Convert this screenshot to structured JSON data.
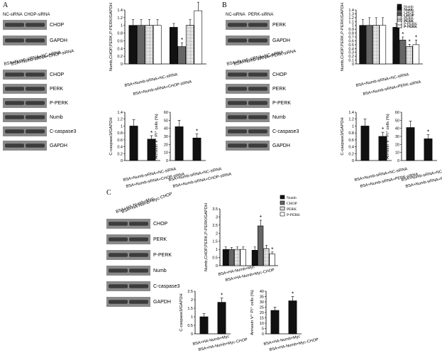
{
  "panels": {
    "A": {
      "letter": "A",
      "top_blot": {
        "lane_labels": [
          "NC-siRNA",
          "CHOP-siRNA"
        ],
        "bands": [
          "CHOP",
          "GAPDH"
        ]
      },
      "lower_blot": {
        "lane_labels": [
          "BSA+Numb-siRNA+NC-siRNA",
          "BSA+Numb-siRNA+CHOP-siRNA"
        ],
        "bands": [
          "CHOP",
          "PERK",
          "P-PERK",
          "Numb",
          "C-caspase3",
          "GAPDH"
        ]
      }
    },
    "B": {
      "letter": "B",
      "top_blot": {
        "lane_labels": [
          "NC-siRNA",
          "PERK-siRNA"
        ],
        "bands": [
          "PERK",
          "GAPDH"
        ]
      },
      "lower_blot": {
        "lane_labels": [
          "BSA+Numb-siRNA+NC-siRNA",
          "BSA+Numb-siRNA+PERK-siRNA"
        ],
        "bands": [
          "CHOP",
          "PERK",
          "P-PERK",
          "Numb",
          "C-caspase3",
          "GAPDH"
        ]
      }
    },
    "C": {
      "letter": "C",
      "blot": {
        "lane_labels": [
          "BSA+HA-Numb+Myc",
          "BSA+HA-Numb+Myc-CHOP"
        ],
        "bands": [
          "CHOP",
          "PERK",
          "P-PERK",
          "Numb",
          "C-caspase3",
          "GAPDH"
        ]
      }
    }
  },
  "legend_items": [
    "Numb",
    "CHOP",
    "PERK",
    "P-PERK"
  ],
  "chart_data": [
    {
      "id": "A-grouped",
      "type": "bar",
      "ylabel": "Numb,CHOP,PERK,P-PERK/GAPDH",
      "ylim": [
        0,
        1.4
      ],
      "yticks": [
        "0",
        "0.2",
        "0.4",
        "0.6",
        "0.8",
        "1",
        "1.2",
        "1.4"
      ],
      "categories": [
        "BSA+Numb-siRNA+NC-siRNA",
        "BSA+Numb-siRNA+CHOP-siRNA"
      ],
      "series": [
        {
          "name": "Numb",
          "values": [
            1.0,
            0.95
          ],
          "errors": [
            0.15,
            0.1
          ]
        },
        {
          "name": "CHOP",
          "values": [
            1.0,
            0.45
          ],
          "errors": [
            0.15,
            0.1
          ]
        },
        {
          "name": "PERK",
          "values": [
            1.0,
            1.0
          ],
          "errors": [
            0.15,
            0.15
          ]
        },
        {
          "name": "P-PERK",
          "values": [
            1.0,
            1.38
          ],
          "errors": [
            0.15,
            0.22
          ]
        }
      ],
      "significance": [
        "",
        "",
        "",
        "",
        "",
        "*",
        "",
        "*"
      ]
    },
    {
      "id": "A-caspase",
      "type": "bar",
      "ylabel": "C-caspase3/GAPDH",
      "ylim": [
        0,
        1.4
      ],
      "yticks": [
        "0",
        "0.2",
        "0.4",
        "0.6",
        "0.8",
        "1",
        "1.2",
        "1.4"
      ],
      "categories": [
        "BSA+Numb-siRNA+NC-siRNA",
        "BSA+Numb-siRNA+CHOP-siRNA"
      ],
      "values": [
        1.0,
        0.62
      ],
      "errors": [
        0.18,
        0.1
      ],
      "significance": [
        "",
        "*"
      ]
    },
    {
      "id": "A-annexin",
      "type": "bar",
      "ylabel": "Annexin V⁺ PI⁺ cells (%)",
      "ylim": [
        0,
        60
      ],
      "yticks": [
        "0",
        "10",
        "20",
        "30",
        "40",
        "50",
        "60"
      ],
      "categories": [
        "BSA+Numb-siRNA+NC-siRNA",
        "BSA+Numb-siRNA+CHOP-siRNA"
      ],
      "values": [
        42,
        28
      ],
      "errors": [
        8,
        5
      ],
      "significance": [
        "",
        "*"
      ]
    },
    {
      "id": "B-grouped",
      "type": "bar",
      "ylabel": "Numb,CHOP,PERK,P-PERK/GAPDH",
      "ylim": [
        0,
        1.4
      ],
      "yticks": [
        "0",
        "0.1",
        "0.2",
        "0.3",
        "0.4",
        "0.5",
        "0.6",
        "0.7",
        "0.8",
        "0.9",
        "1",
        "1.1",
        "1.2",
        "1.3",
        "1.4"
      ],
      "categories": [
        "BSA+Numb-siRNA+NC-siRNA",
        "BSA+Numb-siRNA+PERK-siRNA"
      ],
      "series": [
        {
          "name": "Numb",
          "values": [
            1.0,
            0.95
          ],
          "errors": [
            0.15,
            0.1
          ]
        },
        {
          "name": "CHOP",
          "values": [
            1.0,
            0.62
          ],
          "errors": [
            0.2,
            0.08
          ]
        },
        {
          "name": "PERK",
          "values": [
            1.0,
            0.45
          ],
          "errors": [
            0.2,
            0.06
          ]
        },
        {
          "name": "P-PERK",
          "values": [
            1.0,
            0.5
          ],
          "errors": [
            0.2,
            0.12
          ]
        }
      ],
      "significance": [
        "",
        "",
        "",
        "",
        "",
        "*",
        "*",
        "*"
      ]
    },
    {
      "id": "B-caspase",
      "type": "bar",
      "ylabel": "C-caspase3/GAPDH",
      "ylim": [
        0,
        1.4
      ],
      "yticks": [
        "0",
        "0.2",
        "0.4",
        "0.6",
        "0.8",
        "1",
        "1.2",
        "1.4"
      ],
      "categories": [
        "BSA+Numb-siRNA+NC-siRNA",
        "BSA+Numb-siRNA+PERK-siRNA"
      ],
      "values": [
        1.0,
        0.7
      ],
      "errors": [
        0.2,
        0.12
      ],
      "significance": [
        "",
        "*"
      ]
    },
    {
      "id": "B-annexin",
      "type": "bar",
      "ylabel": "Annexin V⁺ PI⁺ cells (%)",
      "ylim": [
        0,
        60
      ],
      "yticks": [
        "0",
        "10",
        "20",
        "30",
        "40",
        "50",
        "60"
      ],
      "categories": [
        "BSA+Numb-siRNA+NC-siRNA",
        "BSA+Numb-siRNA+PERK-siRNA"
      ],
      "values": [
        41,
        27
      ],
      "errors": [
        8,
        5
      ],
      "significance": [
        "",
        "*"
      ]
    },
    {
      "id": "C-grouped",
      "type": "bar",
      "ylabel": "Numb,CHOP,PERK,P-PERK/GAPDH",
      "ylim": [
        0,
        3.5
      ],
      "yticks": [
        "0",
        "0.5",
        "1",
        "1.5",
        "2",
        "2.5",
        "3",
        "3.5"
      ],
      "categories": [
        "BSA+HA-Numb+Myc",
        "BSA+HA-Numb+Myc-CHOP"
      ],
      "series": [
        {
          "name": "Numb",
          "values": [
            1.0,
            0.95
          ],
          "errors": [
            0.15,
            0.2
          ]
        },
        {
          "name": "CHOP",
          "values": [
            1.0,
            2.45
          ],
          "errors": [
            0.12,
            0.35
          ]
        },
        {
          "name": "PERK",
          "values": [
            1.0,
            1.05
          ],
          "errors": [
            0.15,
            0.2
          ]
        },
        {
          "name": "P-PERK",
          "values": [
            1.0,
            0.72
          ],
          "errors": [
            0.15,
            0.12
          ]
        }
      ],
      "significance": [
        "",
        "",
        "",
        "",
        "",
        "*",
        "",
        "*"
      ]
    },
    {
      "id": "C-caspase",
      "type": "bar",
      "ylabel": "C-caspase3/GAPDH",
      "ylim": [
        0,
        2.5
      ],
      "yticks": [
        "0",
        "0.5",
        "1",
        "1.5",
        "2",
        "2.5"
      ],
      "categories": [
        "BSA+HA-Numb+Myc",
        "BSA+HA-Numb+Myc-CHOP"
      ],
      "values": [
        1.0,
        1.85
      ],
      "errors": [
        0.18,
        0.25
      ],
      "significance": [
        "",
        "*"
      ]
    },
    {
      "id": "C-annexin",
      "type": "bar",
      "ylabel": "Annexin V⁺ PI⁺ cells (%)",
      "ylim": [
        0,
        40
      ],
      "yticks": [
        "0",
        "5",
        "10",
        "15",
        "20",
        "25",
        "30",
        "35",
        "40"
      ],
      "categories": [
        "BSA+HA-Numb+Myc",
        "BSA+HA-Numb+Myc-CHOP"
      ],
      "values": [
        22,
        31
      ],
      "errors": [
        3,
        4
      ],
      "significance": [
        "",
        "*"
      ]
    }
  ]
}
